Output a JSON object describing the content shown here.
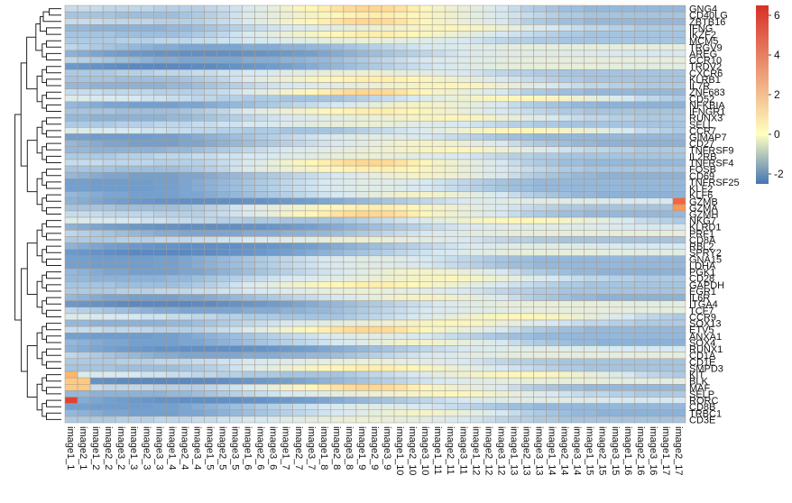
{
  "chart_data": {
    "type": "heatmap",
    "columns": [
      "image1_1",
      "image2_1",
      "image1_2",
      "image2_2",
      "image3_2",
      "image1_3",
      "image2_3",
      "image3_3",
      "image1_4",
      "image2_4",
      "image3_4",
      "image1_5",
      "image2_5",
      "image3_5",
      "image1_6",
      "image2_6",
      "image3_6",
      "image1_7",
      "image2_7",
      "image3_7",
      "image1_8",
      "image2_8",
      "image3_8",
      "image1_9",
      "image2_9",
      "image3_9",
      "image1_10",
      "image2_10",
      "image3_10",
      "image1_11",
      "image2_11",
      "image3_11",
      "image1_12",
      "image2_12",
      "image3_12",
      "image1_13",
      "image2_13",
      "image3_13",
      "image1_14",
      "image2_14",
      "image3_14",
      "image1_15",
      "image2_15",
      "image3_15",
      "image1_16",
      "image2_16",
      "image3_16",
      "image1_17",
      "image2_17"
    ],
    "rows": [
      "GNG4",
      "CD40LG",
      "ZBTB16",
      "IFNG",
      "IKZF2",
      "MCM5",
      "TRGV9",
      "AREG",
      "CCR10",
      "TRDV2",
      "CXCR6",
      "KLRB1",
      "IL7R",
      "ZNF683",
      "CD52",
      "NFKBIA",
      "IFNGR1",
      "RUNX3",
      "SELL",
      "CCR7",
      "GIMAP7",
      "CD27",
      "TNFRSF9",
      "IL2RB",
      "TNFRSF4",
      "FOSB",
      "CD69",
      "TNFRSF25",
      "KLF2",
      "KLF6",
      "GZMB",
      "GZMA",
      "GZMH",
      "NKG7",
      "KLRD1",
      "PRF1",
      "CD8A",
      "RBL2",
      "SPRY2",
      "GNA15",
      "LDHA",
      "PGK1",
      "CD28",
      "GAPDH",
      "EGR1",
      "IL6R",
      "ITGA4",
      "TCF7",
      "CCR9",
      "SOX13",
      "ETV5",
      "ANXA1",
      "SOX4",
      "RUNX1",
      "CD1A",
      "CD1E",
      "SMPD3",
      "KIT",
      "BLK",
      "MAF",
      "SELP",
      "RORC",
      "CD8B",
      "TRBC1",
      "CD3E"
    ],
    "visible_row_labels": [
      "GNG4",
      "CD40LG",
      "ZBTB16",
      "IFNG",
      "IKZF2",
      "MCM5",
      "TRGV9",
      "AREG",
      "CCR10",
      "TRDV2",
      "CXCR6",
      "KLRB1",
      "IL7R",
      "ZNF683",
      "CD52",
      "NFKBIA",
      "IFNGR1",
      "RUNX3",
      "SELL",
      "CCR7",
      "GIMAP7",
      "CD27",
      "TNFRSF9",
      "IL2RB",
      "TNFRSF4",
      "FOSB",
      "CD69",
      "TNFRSF25",
      "KLF2",
      "KLF6",
      "GZMB",
      "GZMA",
      "GZMH",
      "NKG7",
      "KLRD1",
      "PRF1",
      "CD8A",
      "RBL2",
      "SPRY2",
      "GNA15",
      "LDHA",
      "PGK1",
      "CD28",
      "GAPDH",
      "EGR1",
      "IL6R",
      "ITGA4",
      "TCF7",
      "CCR9",
      "SOX13",
      "ETV5",
      "ANXA1",
      "SOX4",
      "RUNX1",
      "CD1A",
      "CD1E",
      "SMPD3",
      "KIT",
      "BLK",
      "MAF",
      "SELP",
      "RORC",
      "CD8B",
      "TRBC1",
      "CD3E"
    ],
    "legend": {
      "ticks": [
        6,
        4,
        2,
        0,
        -2
      ],
      "min": -2.5,
      "max": 6.5,
      "colors": [
        "#4575b4",
        "#ffffbf",
        "#d73027"
      ],
      "placement": "top-right"
    },
    "grid": true,
    "dendrogram": "left",
    "profiles": [
      [
        -0.2,
        -0.2,
        -0.2,
        -0.3,
        -0.3,
        -0.3,
        -0.3,
        -0.4,
        -0.4,
        -0.4,
        -0.4,
        -0.3,
        -0.2,
        -0.1,
        0.1,
        0.3,
        0.6,
        0.9,
        1.2,
        1.4,
        1.6,
        1.9,
        2.1,
        2.2,
        2.2,
        2.1,
        1.9,
        1.6,
        1.3,
        1.0,
        0.8,
        0.6,
        0.4,
        0.2,
        0.0,
        -0.2,
        -0.4,
        -0.5,
        -0.6,
        -0.7,
        -0.7,
        -0.8,
        -0.8,
        -0.8,
        -0.8,
        -0.8,
        -0.8,
        -0.8,
        -0.8
      ],
      [
        -0.6,
        -0.6,
        -0.6,
        -0.6,
        -0.7,
        -0.7,
        -0.7,
        -0.7,
        -0.7,
        -0.6,
        -0.5,
        -0.4,
        -0.3,
        -0.1,
        0.1,
        0.3,
        0.5,
        0.7,
        0.9,
        1.1,
        1.3,
        1.4,
        1.5,
        1.6,
        1.6,
        1.6,
        1.5,
        1.4,
        1.2,
        1.0,
        0.8,
        0.6,
        0.4,
        0.2,
        0.0,
        -0.1,
        -0.2,
        -0.3,
        -0.4,
        -0.5,
        -0.5,
        -0.6,
        -0.6,
        -0.6,
        -0.6,
        -0.6,
        -0.6,
        -0.6,
        -0.6
      ],
      [
        -0.8,
        -0.8,
        -0.9,
        -0.9,
        -0.9,
        -0.9,
        -0.9,
        -0.9,
        -0.8,
        -0.8,
        -0.7,
        -0.6,
        -0.5,
        -0.4,
        -0.3,
        -0.2,
        -0.1,
        0.0,
        0.1,
        0.2,
        0.3,
        0.4,
        0.5,
        0.6,
        0.7,
        0.8,
        0.9,
        1.0,
        1.1,
        1.2,
        1.3,
        1.2,
        1.1,
        0.9,
        0.7,
        0.5,
        0.3,
        0.2,
        0.0,
        -0.1,
        -0.2,
        -0.3,
        -0.3,
        -0.4,
        -0.4,
        -0.5,
        -0.5,
        -0.5,
        -0.5
      ],
      [
        -0.5,
        -0.5,
        -0.5,
        -0.5,
        -0.4,
        -0.4,
        -0.4,
        -0.3,
        -0.3,
        -0.3,
        -0.2,
        -0.2,
        -0.1,
        -0.1,
        0.0,
        0.0,
        0.1,
        0.2,
        0.3,
        0.4,
        0.5,
        0.6,
        0.6,
        0.7,
        0.7,
        0.6,
        0.5,
        0.4,
        0.3,
        0.2,
        0.1,
        0.0,
        -0.1,
        -0.2,
        -0.3,
        -0.4,
        -0.4,
        -0.5,
        -0.5,
        -0.6,
        -0.6,
        -0.6,
        -0.6,
        -0.6,
        -0.6,
        -0.6,
        -0.6,
        -0.6,
        -0.6
      ],
      [
        -0.3,
        -0.4,
        -0.5,
        -0.6,
        -0.7,
        -0.8,
        -0.9,
        -1.0,
        -1.0,
        -1.1,
        -1.1,
        -1.1,
        -1.1,
        -1.1,
        -1.0,
        -1.0,
        -1.0,
        -0.9,
        -0.9,
        -0.8,
        -0.8,
        -0.7,
        -0.6,
        -0.5,
        -0.4,
        -0.3,
        -0.2,
        -0.1,
        0.0,
        0.1,
        0.1,
        0.2,
        0.3,
        0.3,
        0.4,
        0.4,
        0.5,
        0.5,
        0.5,
        0.5,
        0.5,
        0.5,
        0.5,
        0.5,
        0.5,
        0.5,
        0.5,
        0.5,
        0.5
      ],
      [
        -0.9,
        -1.0,
        -1.1,
        -1.2,
        -1.3,
        -1.4,
        -1.5,
        -1.6,
        -1.6,
        -1.7,
        -1.7,
        -1.7,
        -1.7,
        -1.7,
        -1.6,
        -1.6,
        -1.5,
        -1.4,
        -1.3,
        -1.2,
        -1.1,
        -1.0,
        -0.9,
        -0.8,
        -0.7,
        -0.6,
        -0.5,
        -0.4,
        -0.3,
        -0.2,
        -0.1,
        0.0,
        0.1,
        0.2,
        0.2,
        0.3,
        0.3,
        0.3,
        0.3,
        0.3,
        0.2,
        0.2,
        0.1,
        0.1,
        0.0,
        0.0,
        0.0,
        0.0,
        0.0
      ],
      [
        -1.4,
        -1.5,
        -1.6,
        -1.7,
        -1.8,
        -1.9,
        -1.9,
        -1.9,
        -1.9,
        -1.9,
        -1.8,
        -1.8,
        -1.7,
        -1.6,
        -1.5,
        -1.4,
        -1.3,
        -1.2,
        -1.1,
        -1.0,
        -0.9,
        -0.8,
        -0.7,
        -0.6,
        -0.5,
        -0.4,
        -0.3,
        -0.2,
        -0.1,
        0.0,
        0.1,
        0.2,
        0.3,
        0.4,
        0.5,
        0.5,
        0.6,
        0.6,
        0.6,
        0.6,
        0.6,
        0.6,
        0.5,
        0.5,
        0.4,
        0.4,
        0.4,
        0.4,
        0.4
      ],
      [
        0.2,
        0.2,
        0.1,
        0.1,
        0.0,
        0.0,
        -0.1,
        -0.1,
        -0.2,
        -0.2,
        -0.3,
        -0.3,
        -0.4,
        -0.4,
        -0.5,
        -0.5,
        -0.5,
        -0.6,
        -0.6,
        -0.6,
        -0.6,
        -0.6,
        -0.5,
        -0.4,
        -0.3,
        -0.2,
        -0.1,
        0.0,
        0.2,
        0.4,
        0.6,
        0.8,
        1.0,
        1.2,
        1.3,
        1.4,
        1.4,
        1.3,
        1.2,
        1.0,
        0.8,
        0.6,
        0.4,
        0.2,
        0.0,
        -0.2,
        -0.3,
        -0.4,
        -0.5
      ],
      [
        -0.8,
        -0.9,
        -1.0,
        -1.1,
        -1.1,
        -1.2,
        -1.2,
        -1.2,
        -1.2,
        -1.1,
        -1.1,
        -1.0,
        -0.9,
        -0.8,
        -0.7,
        -0.6,
        -0.5,
        -0.4,
        -0.3,
        -0.2,
        -0.1,
        0.0,
        0.1,
        0.3,
        0.5,
        0.7,
        0.9,
        1.0,
        1.0,
        0.9,
        0.8,
        0.6,
        0.4,
        0.2,
        0.0,
        -0.2,
        -0.4,
        -0.5,
        -0.6,
        -0.7,
        -0.8,
        -0.8,
        -0.9,
        -0.9,
        -0.9,
        -0.9,
        -0.9,
        -0.9,
        -0.9
      ],
      [
        -1.2,
        -1.2,
        -1.3,
        -1.3,
        -1.3,
        -1.3,
        -1.3,
        -1.2,
        -1.2,
        -1.1,
        -1.0,
        -0.9,
        -0.8,
        -0.7,
        -0.6,
        -0.5,
        -0.4,
        -0.3,
        -0.2,
        -0.1,
        0.0,
        0.1,
        0.2,
        0.3,
        0.3,
        0.3,
        0.2,
        0.1,
        0.0,
        -0.1,
        -0.2,
        -0.3,
        -0.4,
        -0.5,
        -0.6,
        -0.7,
        -0.7,
        -0.8,
        -0.8,
        -0.8,
        -0.8,
        -0.8,
        -0.8,
        -0.8,
        -0.8,
        -0.8,
        -0.8,
        -0.8,
        -0.8
      ]
    ],
    "row_profile": [
      0,
      1,
      0,
      2,
      1,
      3,
      4,
      5,
      4,
      6,
      3,
      1,
      2,
      0,
      7,
      8,
      1,
      2,
      3,
      7,
      9,
      8,
      2,
      3,
      0,
      1,
      8,
      9,
      9,
      8,
      5,
      1,
      0,
      7,
      5,
      4,
      3,
      5,
      6,
      9,
      9,
      8,
      2,
      1,
      3,
      8,
      6,
      4,
      7,
      2,
      0,
      9,
      8,
      5,
      4,
      3,
      1,
      7,
      6,
      0,
      2,
      5,
      9,
      8,
      3
    ]
  }
}
